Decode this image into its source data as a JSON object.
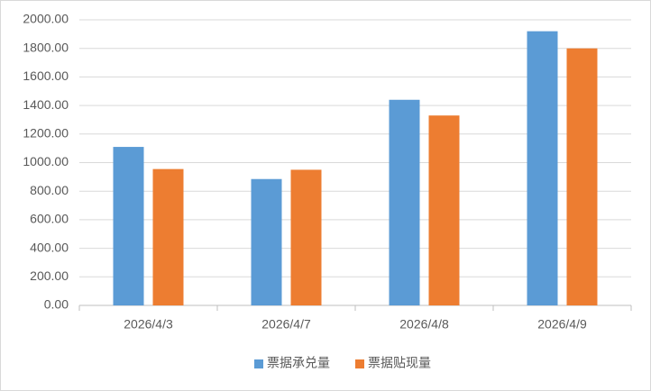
{
  "chart_data": {
    "type": "bar",
    "categories": [
      "2026/4/3",
      "2026/4/7",
      "2026/4/8",
      "2026/4/9"
    ],
    "series": [
      {
        "name": "票据承兑量",
        "color": "#5b9bd5",
        "values": [
          1110,
          885,
          1440,
          1920
        ]
      },
      {
        "name": "票据贴现量",
        "color": "#ed7d31",
        "values": [
          955,
          950,
          1330,
          1800
        ]
      }
    ],
    "ylim": [
      0,
      2000
    ],
    "yticks": [
      {
        "value": 0,
        "label": "0.00"
      },
      {
        "value": 200,
        "label": "200.00"
      },
      {
        "value": 400,
        "label": "400.00"
      },
      {
        "value": 600,
        "label": "600.00"
      },
      {
        "value": 800,
        "label": "800.00"
      },
      {
        "value": 1000,
        "label": "1000.00"
      },
      {
        "value": 1200,
        "label": "1200.00"
      },
      {
        "value": 1400,
        "label": "1400.00"
      },
      {
        "value": 1600,
        "label": "1600.00"
      },
      {
        "value": 1800,
        "label": "1800.00"
      },
      {
        "value": 2000,
        "label": "2000.00"
      }
    ],
    "grid": true,
    "legend": "bottom"
  }
}
